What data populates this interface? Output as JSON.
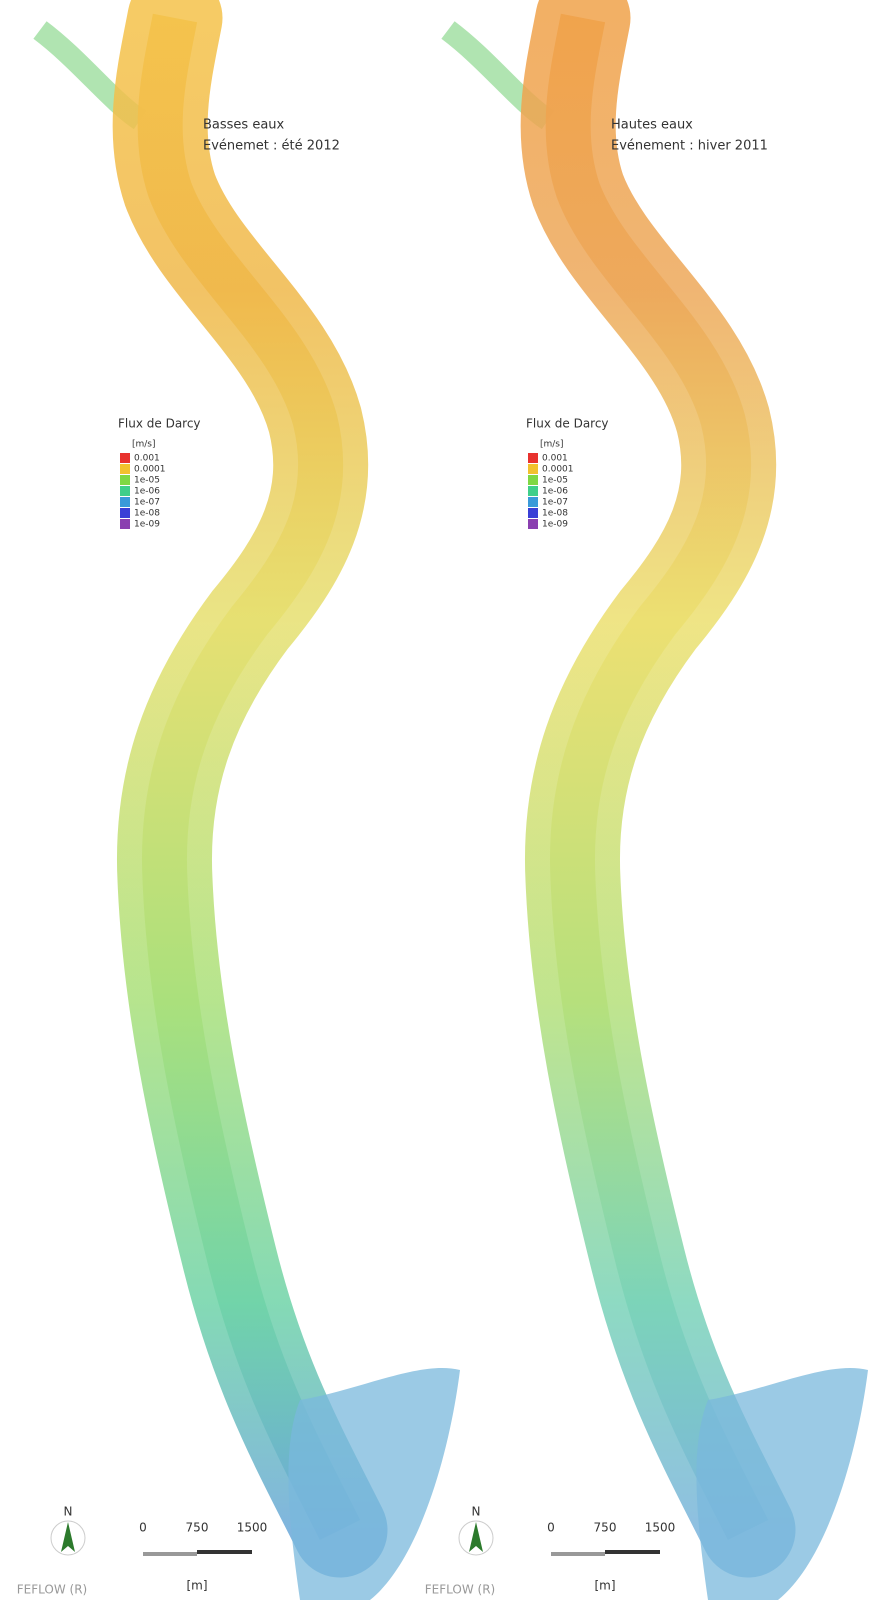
{
  "panels": [
    {
      "title_lines": [
        "Basses eaux",
        "Evénemet : été 2012"
      ],
      "legend": {
        "title": "Flux de Darcy",
        "unit": "[m/s]",
        "items": [
          {
            "label": "0.001",
            "color": "#e8322e"
          },
          {
            "label": "0.0001",
            "color": "#f2c12e"
          },
          {
            "label": "1e-05",
            "color": "#7fd843"
          },
          {
            "label": "1e-06",
            "color": "#3fcf8a"
          },
          {
            "label": "1e-07",
            "color": "#3a9ad9"
          },
          {
            "label": "1e-08",
            "color": "#3a3fd6"
          },
          {
            "label": "1e-09",
            "color": "#8a3fb0"
          }
        ]
      },
      "north": "N",
      "scale_labels": [
        "0",
        "750",
        "1500"
      ],
      "scale_unit": "[m]",
      "software": "FEFLOW (R)"
    },
    {
      "title_lines": [
        "Hautes eaux",
        "Evénement : hiver 2011"
      ],
      "legend": {
        "title": "Flux de Darcy",
        "unit": "[m/s]",
        "items": [
          {
            "label": "0.001",
            "color": "#e8322e"
          },
          {
            "label": "0.0001",
            "color": "#f2c12e"
          },
          {
            "label": "1e-05",
            "color": "#7fd843"
          },
          {
            "label": "1e-06",
            "color": "#3fcf8a"
          },
          {
            "label": "1e-07",
            "color": "#3a9ad9"
          },
          {
            "label": "1e-08",
            "color": "#3a3fd6"
          },
          {
            "label": "1e-09",
            "color": "#8a3fb0"
          }
        ]
      },
      "north": "N",
      "scale_labels": [
        "0",
        "750",
        "1500"
      ],
      "scale_unit": "[m]",
      "software": "FEFLOW (R)"
    }
  ]
}
